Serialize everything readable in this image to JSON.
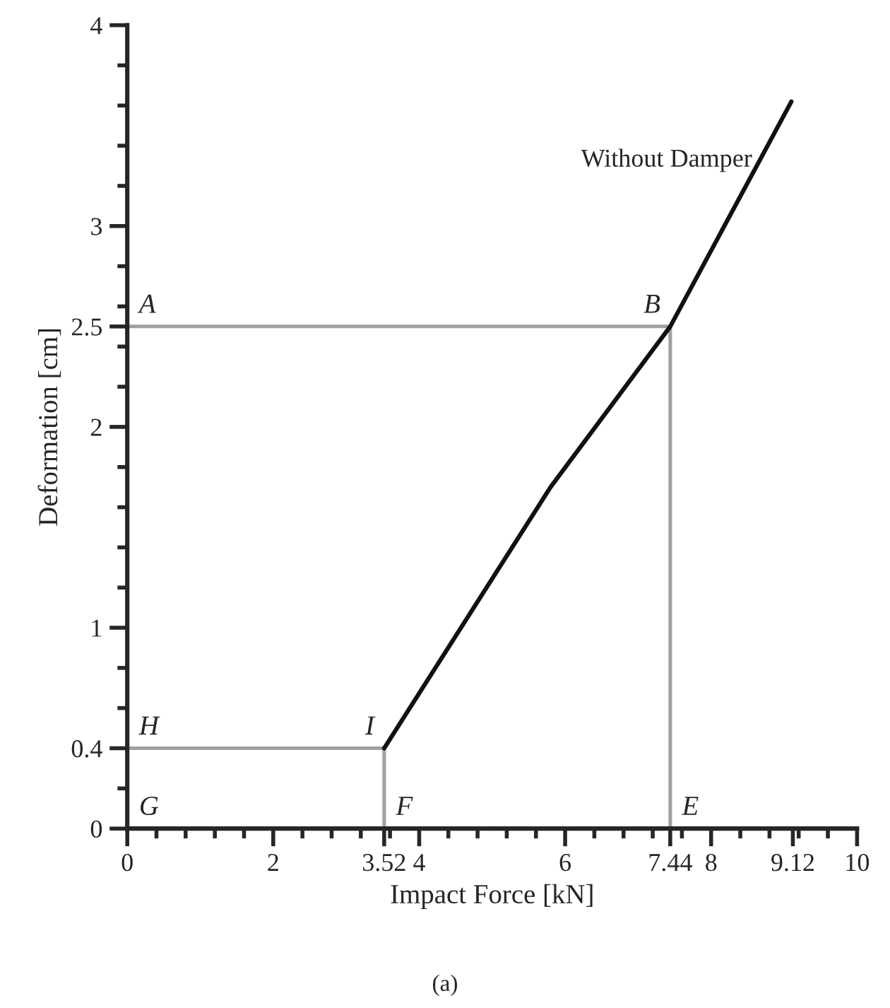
{
  "chart_data": {
    "type": "line",
    "xlabel": "Impact Force [kN]",
    "ylabel": "Deformation [cm]",
    "series": [
      {
        "name": "Without Damper",
        "color": "#111111",
        "x": [
          3.52,
          5.8,
          7.44,
          9.1
        ],
        "values": [
          0.4,
          1.7,
          2.5,
          3.62
        ]
      },
      {
        "type": "line",
        "color": "#a0a0a0",
        "x": [
          0,
          7.44,
          7.44
        ],
        "values": [
          2.5,
          2.5,
          0
        ]
      },
      {
        "type": "line",
        "color": "#a0a0a0",
        "x": [
          0,
          3.52,
          3.52
        ],
        "values": [
          0.4,
          0.4,
          0
        ]
      }
    ],
    "xlim": [
      0,
      10
    ],
    "ylim": [
      0,
      4
    ],
    "xticks": [
      0,
      2,
      3.52,
      4,
      6,
      7.44,
      8,
      9.12,
      10
    ],
    "yticks": [
      0,
      0.4,
      1,
      2,
      2.5,
      3,
      4
    ],
    "grid": false,
    "marker": "none",
    "line_style": "solid",
    "annotations": [
      {
        "text": "A",
        "x": 0,
        "y": 2.5
      },
      {
        "text": "B",
        "x": 7.44,
        "y": 2.5
      },
      {
        "text": "H",
        "x": 0,
        "y": 0.4
      },
      {
        "text": "I",
        "x": 3.52,
        "y": 0.4
      },
      "G",
      {
        "text": "F",
        "x": 3.52,
        "y": 0
      },
      {
        "text": "E",
        "x": 7.44,
        "y": 0
      },
      "(a)"
    ]
  }
}
